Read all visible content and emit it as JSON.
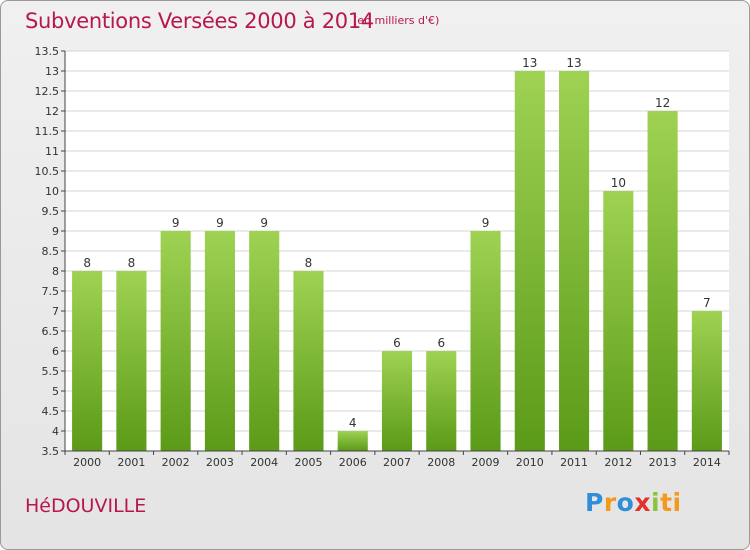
{
  "title": "Subventions Versées 2000 à 2014",
  "subtitle": "(en milliers d'€)",
  "town": "HéDOUVILLE",
  "logo": {
    "letters": [
      "P",
      "r",
      "o",
      "x",
      "i",
      "ti"
    ],
    "colors": [
      "#2f8fd6",
      "#f39a1d",
      "#2f8fd6",
      "#e3322b",
      "#8cc43d",
      "#f39a1d"
    ]
  },
  "chart_data": {
    "type": "bar",
    "categories": [
      "2000",
      "2001",
      "2002",
      "2003",
      "2004",
      "2005",
      "2006",
      "2007",
      "2008",
      "2009",
      "2010",
      "2011",
      "2012",
      "2013",
      "2014"
    ],
    "values": [
      8,
      8,
      9,
      9,
      9,
      8,
      4,
      6,
      6,
      9,
      13,
      13,
      10,
      12,
      7
    ],
    "ylim": [
      3.5,
      13.5
    ],
    "yticks": [
      "3.5",
      "4",
      "4.5",
      "5",
      "5.5",
      "6",
      "6.5",
      "7",
      "7.5",
      "8",
      "8.5",
      "9",
      "9.5",
      "10",
      "10.5",
      "11",
      "11.5",
      "12",
      "12.5",
      "13",
      "13.5"
    ],
    "grid": true,
    "bar_color_top": "#9fd253",
    "bar_color_bottom": "#5b9a18"
  }
}
